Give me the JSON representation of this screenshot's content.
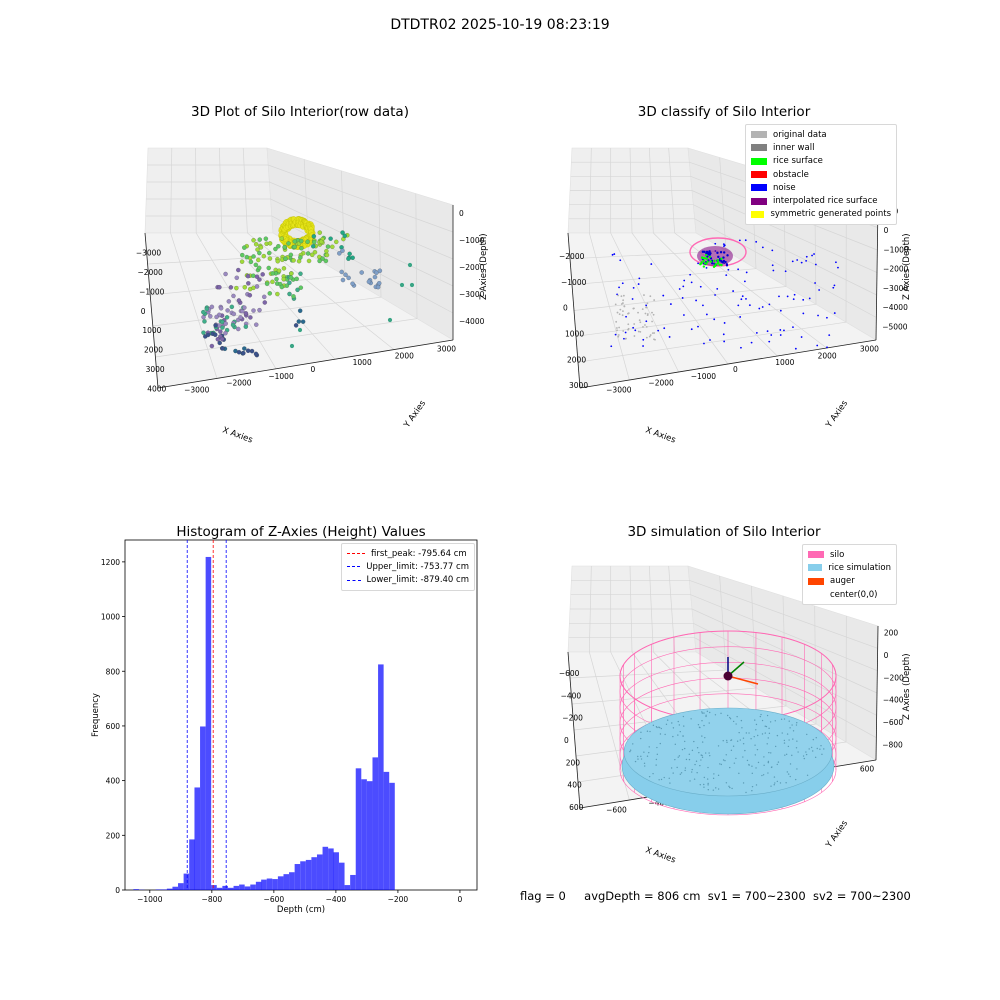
{
  "suptitle": "DTDTR02 2025-10-19 08:23:19",
  "status": {
    "flag": "flag = 0",
    "avg_depth": "avgDepth = 806 cm",
    "sv1": "sv1 = 700~2300",
    "sv2": "sv2 = 700~2300"
  },
  "panels": {
    "raw": {
      "title": "3D Plot of Silo Interior(row data)",
      "x_label": "X Axies",
      "y_label": "Y Axies",
      "z_label": "Z Axies (Depth)",
      "x_ticks": [
        "−3000",
        "−2000",
        "−1000",
        "0",
        "1000",
        "2000",
        "3000",
        "4000"
      ],
      "y_ticks": [
        "−3000",
        "−2000",
        "−1000",
        "0",
        "1000",
        "2000",
        "3000"
      ],
      "z_ticks": [
        "0",
        "−1000",
        "−2000",
        "−3000",
        "−4000"
      ]
    },
    "classify": {
      "title": "3D classify of Silo Interior",
      "x_label": "X Axies",
      "y_label": "Y Axies",
      "z_label": "Z Axies (Depth)",
      "x_ticks": [
        "−2000",
        "−1000",
        "0",
        "1000",
        "2000",
        "3000"
      ],
      "y_ticks": [
        "−3000",
        "−2000",
        "−1000",
        "0",
        "1000",
        "2000",
        "3000"
      ],
      "z_ticks": [
        "000",
        "0",
        "−1000",
        "−2000",
        "−3000",
        "−4000",
        "−5000"
      ],
      "legend": [
        {
          "label": "original data",
          "color": "#b3b3b3"
        },
        {
          "label": "inner wall",
          "color": "#808080"
        },
        {
          "label": "rice surface",
          "color": "#00ff00"
        },
        {
          "label": "obstacle",
          "color": "#ff0000"
        },
        {
          "label": "noise",
          "color": "#0000ff"
        },
        {
          "label": "interpolated rice surface",
          "color": "#800080"
        },
        {
          "label": "symmetric generated points",
          "color": "#ffff00"
        }
      ]
    },
    "simulation": {
      "title": "3D simulation of Silo Interior",
      "x_label": "X Axies",
      "y_label": "Y Axies",
      "z_label": "Z Axies (Depth)",
      "x_ticks": [
        "−600",
        "−400",
        "−200",
        "0",
        "200",
        "400",
        "600"
      ],
      "y_ticks": [
        "−600",
        "−400",
        "−200",
        "0",
        "200",
        "400",
        "600"
      ],
      "z_ticks": [
        "200",
        "0",
        "−200",
        "−400",
        "−600",
        "−800"
      ],
      "legend": [
        {
          "label": "silo",
          "color": "#ff69b4"
        },
        {
          "label": "rice simulation",
          "color": "#87ceeb"
        },
        {
          "label": "auger",
          "color": "#ff4500"
        },
        {
          "label": "center(0,0)",
          "color": ""
        }
      ]
    }
  },
  "chart_data": {
    "type": "bar",
    "title": "Histogram of Z-Axies (Height) Values",
    "xlabel": "Depth (cm)",
    "ylabel": "Frequency",
    "xlim": [
      -1080,
      55
    ],
    "ylim": [
      0,
      1280
    ],
    "x_ticks": [
      -1000,
      -800,
      -600,
      -400,
      -200,
      0
    ],
    "y_ticks": [
      0,
      200,
      400,
      600,
      800,
      1000,
      1200
    ],
    "bar_color": "#0000ff",
    "bin_width": 17.9,
    "bins": [
      {
        "x": -1053,
        "value": 3
      },
      {
        "x": -1035,
        "value": 1
      },
      {
        "x": -1017,
        "value": 0
      },
      {
        "x": -999,
        "value": 0
      },
      {
        "x": -981,
        "value": 2
      },
      {
        "x": -963,
        "value": 2
      },
      {
        "x": -945,
        "value": 5
      },
      {
        "x": -927,
        "value": 12
      },
      {
        "x": -909,
        "value": 25
      },
      {
        "x": -891,
        "value": 60
      },
      {
        "x": -873,
        "value": 185
      },
      {
        "x": -856,
        "value": 375
      },
      {
        "x": -838,
        "value": 598
      },
      {
        "x": -820,
        "value": 1218
      },
      {
        "x": -802,
        "value": 18
      },
      {
        "x": -784,
        "value": 8
      },
      {
        "x": -766,
        "value": 15
      },
      {
        "x": -748,
        "value": 8
      },
      {
        "x": -730,
        "value": 15
      },
      {
        "x": -712,
        "value": 20
      },
      {
        "x": -694,
        "value": 13
      },
      {
        "x": -676,
        "value": 20
      },
      {
        "x": -658,
        "value": 30
      },
      {
        "x": -641,
        "value": 38
      },
      {
        "x": -623,
        "value": 42
      },
      {
        "x": -605,
        "value": 40
      },
      {
        "x": -587,
        "value": 50
      },
      {
        "x": -569,
        "value": 58
      },
      {
        "x": -551,
        "value": 65
      },
      {
        "x": -533,
        "value": 95
      },
      {
        "x": -515,
        "value": 105
      },
      {
        "x": -497,
        "value": 110
      },
      {
        "x": -479,
        "value": 120
      },
      {
        "x": -461,
        "value": 130
      },
      {
        "x": -443,
        "value": 158
      },
      {
        "x": -425,
        "value": 152
      },
      {
        "x": -408,
        "value": 138
      },
      {
        "x": -390,
        "value": 100
      },
      {
        "x": -372,
        "value": 18
      },
      {
        "x": -354,
        "value": 55
      },
      {
        "x": -336,
        "value": 445
      },
      {
        "x": -318,
        "value": 405
      },
      {
        "x": -300,
        "value": 398
      },
      {
        "x": -282,
        "value": 485
      },
      {
        "x": -264,
        "value": 825
      },
      {
        "x": -246,
        "value": 432
      },
      {
        "x": -228,
        "value": 392
      }
    ],
    "vlines": [
      {
        "label": "first_peak: -795.64 cm",
        "x": -795.64,
        "color": "#ff0000"
      },
      {
        "label": "Upper_limit: -753.77 cm",
        "x": -753.77,
        "color": "#0000ff"
      },
      {
        "label": "Lower_limit: -879.40 cm",
        "x": -879.4,
        "color": "#0000ff"
      }
    ]
  }
}
